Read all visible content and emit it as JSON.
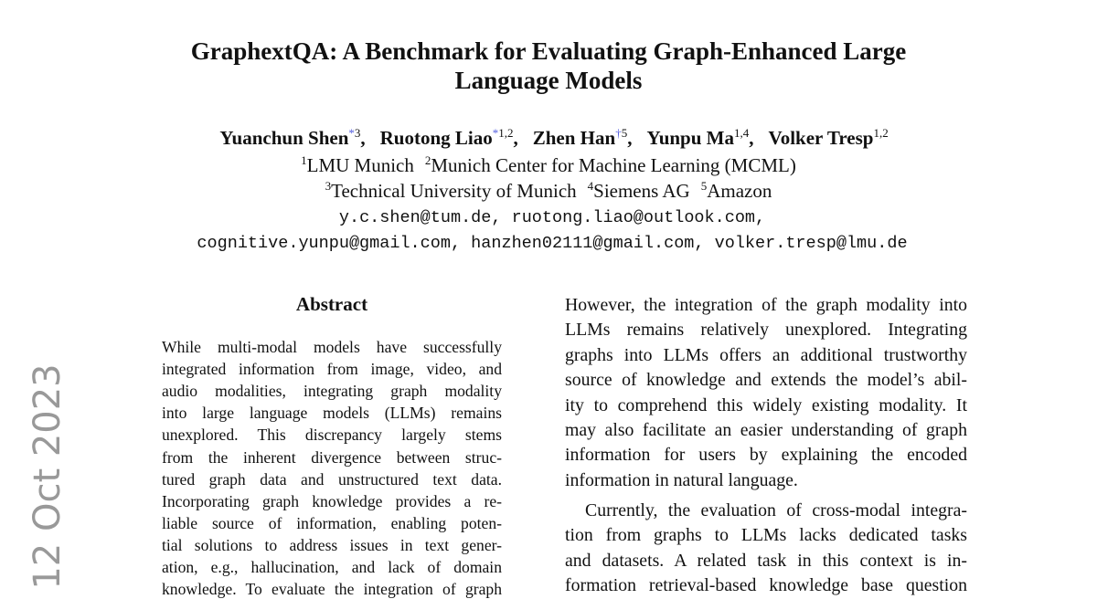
{
  "side_date": "12 Oct 2023",
  "header": {
    "title": "GraphextQA: A Benchmark for Evaluating Graph-Enhanced Large Language Models",
    "authors": [
      {
        "name": "Yuanchun Shen",
        "mark": "*",
        "affil": "3"
      },
      {
        "name": "Ruotong Liao",
        "mark": "*",
        "affil": "1,2"
      },
      {
        "name": "Zhen Han",
        "mark": "†",
        "affil": "5"
      },
      {
        "name": "Yunpu Ma",
        "affil": "1,4"
      },
      {
        "name": "Volker Tresp",
        "affil": "1,2"
      }
    ],
    "affiliations": [
      [
        {
          "num": "1",
          "name": "LMU Munich"
        },
        {
          "num": "2",
          "name": "Munich Center for Machine Learning (MCML)"
        }
      ],
      [
        {
          "num": "3",
          "name": "Technical University of Munich"
        },
        {
          "num": "4",
          "name": "Siemens AG"
        },
        {
          "num": "5",
          "name": "Amazon"
        }
      ]
    ],
    "emails": [
      "y.c.shen@tum.de, ruotong.liao@outlook.com,",
      "cognitive.yunpu@gmail.com, hanzhen02111@gmail.com, volker.tresp@lmu.de"
    ]
  },
  "abstract": {
    "heading": "Abstract",
    "lines": [
      "While multi-modal models have successfully",
      "integrated information from image, video, and",
      "audio modalities, integrating graph modality",
      "into large language models (LLMs) remains",
      "unexplored. This discrepancy largely stems",
      "from the inherent divergence between struc-",
      "tured graph data and unstructured text data.",
      "Incorporating graph knowledge provides a re-",
      "liable source of information, enabling poten-",
      "tial solutions to address issues in text gener-",
      "ation, e.g., hallucination, and lack of domain",
      "knowledge. To evaluate the integration of graph"
    ]
  },
  "right_column": {
    "paragraphs": [
      [
        "However, the integration of the graph modality into",
        "LLMs remains relatively unexplored. Integrating",
        "graphs into LLMs offers an additional trustworthy",
        "source of knowledge and extends the model’s abil-",
        "ity to comprehend this widely existing modality. It",
        "may also facilitate an easier understanding of graph",
        "information for users by explaining the encoded",
        "information in natural language."
      ],
      [
        "Currently, the evaluation of cross-modal integra-",
        "tion from graphs to LLMs lacks dedicated tasks",
        "and datasets. A related task in this context is in-",
        "formation retrieval-based knowledge base question"
      ]
    ]
  }
}
